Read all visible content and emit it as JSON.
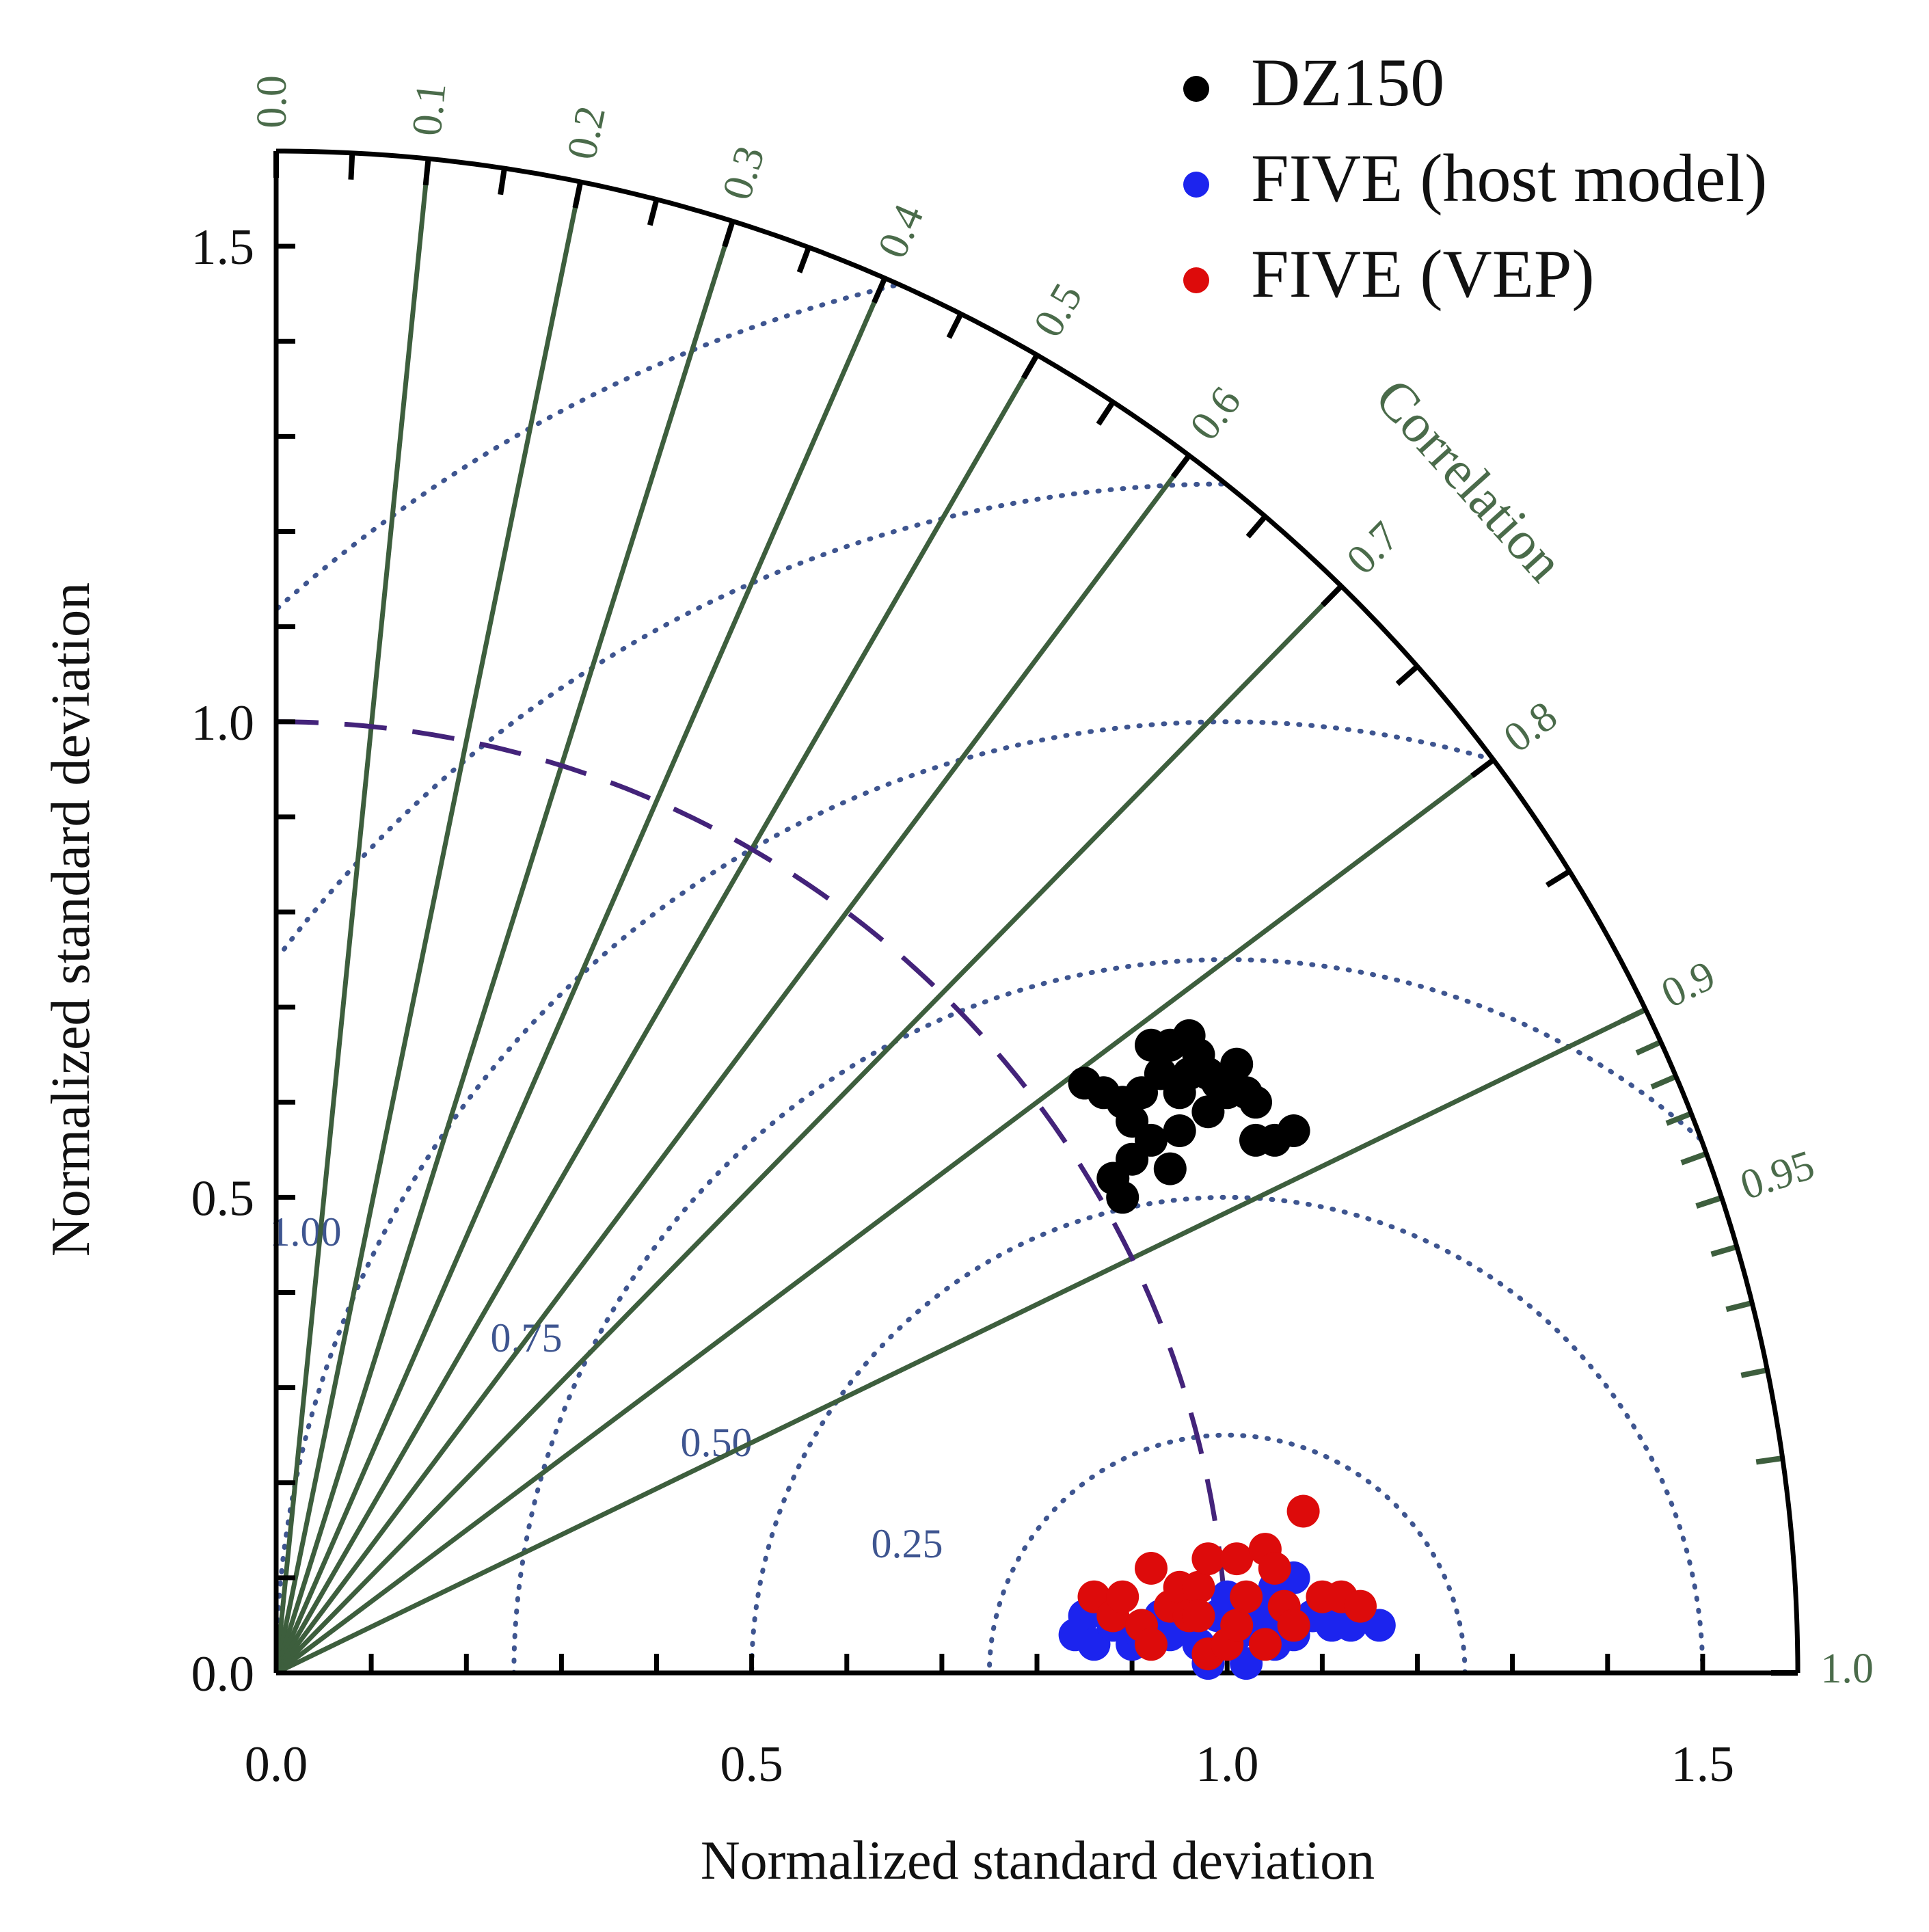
{
  "chart_data": {
    "type": "scatter",
    "subtype": "taylor-diagram",
    "xlabel": "Normalized standard deviation",
    "ylabel": "Normalized standard deviation",
    "axis_range": [
      0,
      1.6
    ],
    "std_ticks": [
      0.0,
      0.5,
      1.0,
      1.5
    ],
    "std_tick_labels": [
      "0.0",
      "0.5",
      "1.0",
      "1.5"
    ],
    "correlation_title": "Correlation",
    "correlation_ticks": [
      0.0,
      0.1,
      0.2,
      0.3,
      0.4,
      0.5,
      0.6,
      0.7,
      0.8,
      0.9,
      0.95,
      1.0
    ],
    "correlation_tick_labels": [
      "0.0",
      "0.1",
      "0.2",
      "0.3",
      "0.4",
      "0.5",
      "0.6",
      "0.7",
      "0.8",
      "0.9",
      "0.95",
      "1.0"
    ],
    "rms_contours": [
      0.25,
      0.5,
      0.75,
      1.0,
      1.25,
      1.5
    ],
    "rms_labels": [
      "0.25",
      "0.50",
      "0.75",
      "1.00"
    ],
    "reference_std": 1.0,
    "colors": {
      "axis": "#000000",
      "correlation_lines": "#3d5e3d",
      "correlation_text": "#4a6b4a",
      "rms_contours": "#3e5590",
      "reference_arc": "#43237a"
    },
    "legend_position": "top-right",
    "series": [
      {
        "name": "DZ150",
        "color": "#000000",
        "points": [
          [
            0.85,
            0.62
          ],
          [
            0.87,
            0.61
          ],
          [
            0.89,
            0.6
          ],
          [
            0.91,
            0.61
          ],
          [
            0.9,
            0.58
          ],
          [
            0.92,
            0.56
          ],
          [
            0.9,
            0.54
          ],
          [
            0.88,
            0.52
          ],
          [
            0.89,
            0.5
          ],
          [
            0.94,
            0.53
          ],
          [
            0.95,
            0.57
          ],
          [
            0.93,
            0.63
          ],
          [
            0.94,
            0.66
          ],
          [
            0.96,
            0.67
          ],
          [
            0.97,
            0.65
          ],
          [
            0.98,
            0.63
          ],
          [
            0.99,
            0.62
          ],
          [
            1.0,
            0.61
          ],
          [
            1.01,
            0.64
          ],
          [
            1.02,
            0.61
          ],
          [
            1.03,
            0.6
          ],
          [
            1.03,
            0.56
          ],
          [
            1.05,
            0.56
          ],
          [
            1.07,
            0.57
          ],
          [
            0.95,
            0.61
          ],
          [
            0.92,
            0.66
          ],
          [
            0.96,
            0.63
          ],
          [
            0.98,
            0.59
          ]
        ]
      },
      {
        "name": "FIVE (host model)",
        "color": "#1c24ee",
        "points": [
          [
            0.85,
            0.06
          ],
          [
            0.84,
            0.04
          ],
          [
            0.86,
            0.03
          ],
          [
            0.88,
            0.05
          ],
          [
            0.9,
            0.03
          ],
          [
            0.91,
            0.04
          ],
          [
            0.93,
            0.06
          ],
          [
            0.94,
            0.04
          ],
          [
            0.96,
            0.05
          ],
          [
            0.97,
            0.03
          ],
          [
            0.99,
            0.06
          ],
          [
            1.0,
            0.08
          ],
          [
            1.01,
            0.04
          ],
          [
            1.03,
            0.07
          ],
          [
            1.04,
            0.05
          ],
          [
            1.05,
            0.09
          ],
          [
            1.07,
            0.1
          ],
          [
            1.07,
            0.04
          ],
          [
            1.09,
            0.06
          ],
          [
            1.11,
            0.05
          ],
          [
            1.13,
            0.05
          ],
          [
            1.16,
            0.05
          ],
          [
            0.98,
            0.01
          ],
          [
            1.02,
            0.01
          ],
          [
            1.05,
            0.03
          ]
        ]
      },
      {
        "name": "FIVE (VEP)",
        "color": "#dd0b0b",
        "points": [
          [
            0.86,
            0.08
          ],
          [
            0.88,
            0.06
          ],
          [
            0.89,
            0.08
          ],
          [
            0.91,
            0.05
          ],
          [
            0.92,
            0.03
          ],
          [
            0.92,
            0.11
          ],
          [
            0.94,
            0.07
          ],
          [
            0.95,
            0.09
          ],
          [
            0.96,
            0.06
          ],
          [
            0.97,
            0.09
          ],
          [
            0.98,
            0.12
          ],
          [
            0.98,
            0.02
          ],
          [
            1.0,
            0.03
          ],
          [
            1.01,
            0.05
          ],
          [
            1.01,
            0.12
          ],
          [
            1.02,
            0.08
          ],
          [
            1.04,
            0.13
          ],
          [
            1.04,
            0.03
          ],
          [
            1.05,
            0.11
          ],
          [
            1.06,
            0.07
          ],
          [
            1.07,
            0.05
          ],
          [
            1.08,
            0.17
          ],
          [
            1.1,
            0.08
          ],
          [
            1.12,
            0.08
          ],
          [
            1.14,
            0.07
          ],
          [
            0.97,
            0.06
          ]
        ]
      }
    ]
  }
}
